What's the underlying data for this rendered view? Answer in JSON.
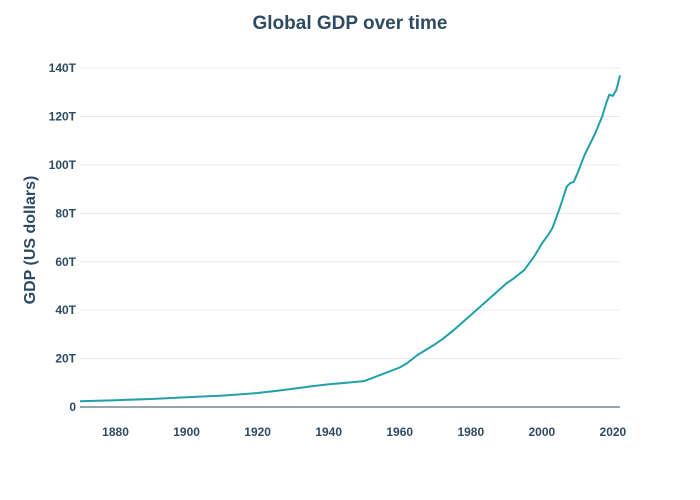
{
  "chart_data": {
    "type": "line",
    "title": "Global GDP over time",
    "xlabel": "",
    "ylabel": "GDP (US dollars)",
    "xlim": [
      1870,
      2022
    ],
    "ylim": [
      0,
      145
    ],
    "x_ticks": [
      1880,
      1900,
      1920,
      1940,
      1960,
      1980,
      2000,
      2020
    ],
    "y_ticks": [
      {
        "value": 0,
        "label": "0"
      },
      {
        "value": 20,
        "label": "20T"
      },
      {
        "value": 40,
        "label": "40T"
      },
      {
        "value": 60,
        "label": "60T"
      },
      {
        "value": 80,
        "label": "80T"
      },
      {
        "value": 100,
        "label": "100T"
      },
      {
        "value": 120,
        "label": "120T"
      },
      {
        "value": 140,
        "label": "140T"
      }
    ],
    "grid": true,
    "colors": {
      "line": "#21a0aa",
      "text": "#2f4b64"
    },
    "series": [
      {
        "name": "Global GDP",
        "unit": "trillion US dollars",
        "x": [
          1870,
          1880,
          1890,
          1900,
          1910,
          1913,
          1920,
          1925,
          1930,
          1935,
          1940,
          1945,
          1950,
          1955,
          1960,
          1962,
          1965,
          1970,
          1972,
          1975,
          1980,
          1985,
          1990,
          1992,
          1995,
          1998,
          2000,
          2002,
          2003,
          2005,
          2007,
          2008,
          2009,
          2010,
          2012,
          2015,
          2017,
          2018,
          2019,
          2020,
          2021,
          2022
        ],
        "values": [
          2.4,
          2.8,
          3.3,
          4.0,
          4.7,
          5.0,
          5.8,
          6.6,
          7.5,
          8.5,
          9.4,
          10.0,
          10.7,
          13.5,
          16.3,
          18.0,
          21.5,
          26.0,
          28.0,
          31.5,
          38.0,
          44.5,
          51.0,
          53.0,
          56.5,
          62.5,
          67.5,
          71.5,
          74.0,
          82.0,
          91.0,
          92.5,
          93.0,
          96.5,
          104.0,
          113.0,
          120.0,
          125.0,
          129.0,
          128.5,
          131.0,
          137.0
        ]
      }
    ]
  }
}
